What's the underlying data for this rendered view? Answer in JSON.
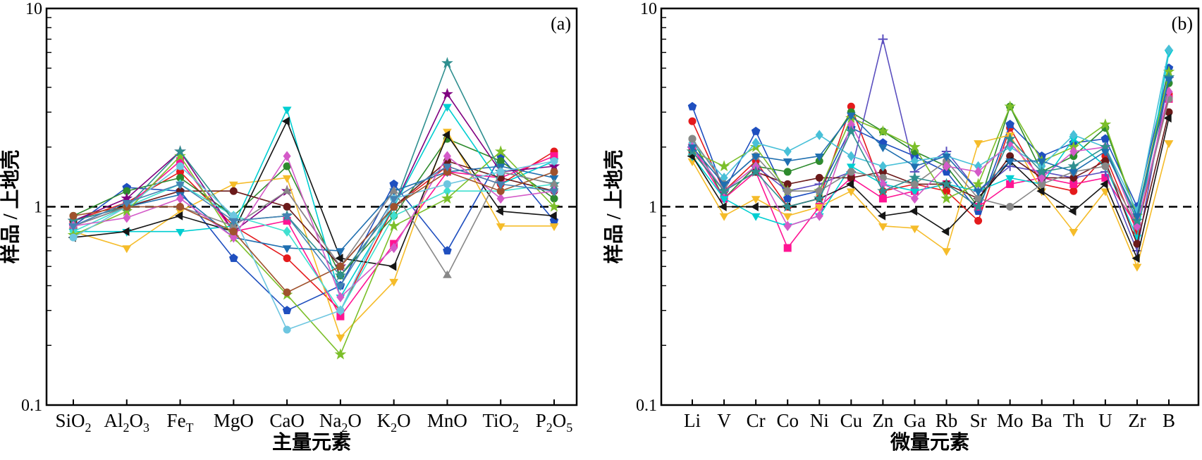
{
  "chart_data": [
    {
      "type": "line",
      "panel_label": "(a)",
      "xlabel": "主量元素",
      "ylabel": "样品 / 上地壳",
      "yscale": "log",
      "ylim": [
        0.1,
        10
      ],
      "y_ticks": [
        "0.1",
        "1",
        "10"
      ],
      "reference_line": 1,
      "grid": false,
      "categories": [
        {
          "base": "SiO",
          "sub": "2",
          "base2": "",
          "sub2": ""
        },
        {
          "base": "Al",
          "sub": "2",
          "base2": "O",
          "sub2": "3"
        },
        {
          "base": "Fe",
          "sub": "T",
          "base2": "",
          "sub2": ""
        },
        {
          "base": "MgO",
          "sub": "",
          "base2": "",
          "sub2": ""
        },
        {
          "base": "CaO",
          "sub": "",
          "base2": "",
          "sub2": ""
        },
        {
          "base": "Na",
          "sub": "2",
          "base2": "O",
          "sub2": ""
        },
        {
          "base": "K",
          "sub": "2",
          "base2": "O",
          "sub2": ""
        },
        {
          "base": "MnO",
          "sub": "",
          "base2": "",
          "sub2": ""
        },
        {
          "base": "TiO",
          "sub": "2",
          "base2": "",
          "sub2": ""
        },
        {
          "base": "P",
          "sub": "2",
          "base2": "O",
          "sub2": "5"
        }
      ],
      "series": [
        {
          "color": "#e41a1c",
          "marker": "circle",
          "values": [
            0.85,
            1.05,
            1.5,
            0.8,
            0.55,
            0.3,
            1.0,
            1.6,
            1.3,
            1.9
          ]
        },
        {
          "color": "#1f4fbf",
          "marker": "pentagon",
          "values": [
            0.8,
            1.25,
            1.2,
            0.55,
            0.3,
            0.4,
            1.3,
            0.6,
            1.8,
            0.85
          ]
        },
        {
          "color": "#2e8b2e",
          "marker": "circle",
          "values": [
            0.9,
            1.2,
            1.4,
            0.9,
            1.6,
            0.45,
            0.9,
            2.2,
            1.7,
            1.1
          ]
        },
        {
          "color": "#ff1493",
          "marker": "square",
          "values": [
            0.8,
            1.0,
            1.7,
            0.75,
            0.85,
            0.28,
            0.65,
            1.5,
            1.4,
            1.8
          ]
        },
        {
          "color": "#800080",
          "marker": "star",
          "values": [
            0.85,
            1.1,
            1.9,
            0.75,
            1.2,
            0.5,
            1.0,
            3.7,
            1.5,
            1.6
          ]
        },
        {
          "color": "#f5bc2a",
          "marker": "tri-down",
          "values": [
            0.75,
            0.62,
            0.95,
            1.3,
            1.4,
            0.22,
            0.42,
            2.4,
            0.8,
            0.8
          ]
        },
        {
          "color": "#00ced1",
          "marker": "tri-down",
          "values": [
            0.75,
            0.75,
            0.75,
            0.8,
            3.1,
            0.35,
            1.0,
            3.2,
            1.3,
            1.7
          ]
        },
        {
          "color": "#6b1a1a",
          "marker": "circle",
          "values": [
            0.85,
            1.0,
            1.2,
            1.2,
            1.0,
            0.5,
            1.0,
            1.7,
            1.4,
            1.2
          ]
        },
        {
          "color": "#151515",
          "marker": "tri-left",
          "values": [
            0.7,
            0.75,
            0.9,
            0.75,
            2.7,
            0.55,
            0.5,
            2.3,
            0.95,
            0.9
          ]
        },
        {
          "color": "#1f6fb0",
          "marker": "tri-down",
          "values": [
            0.8,
            1.0,
            1.15,
            0.7,
            0.62,
            0.6,
            1.2,
            1.5,
            1.6,
            1.4
          ]
        },
        {
          "color": "#40e0d0",
          "marker": "diamond",
          "values": [
            0.75,
            1.0,
            1.3,
            0.9,
            0.75,
            0.3,
            0.9,
            1.2,
            1.2,
            1.3
          ]
        },
        {
          "color": "#7cbf2a",
          "marker": "star",
          "values": [
            0.72,
            0.95,
            1.8,
            0.7,
            0.36,
            0.18,
            0.8,
            1.1,
            1.9,
            1.0
          ]
        },
        {
          "color": "#2f8f8f",
          "marker": "star",
          "values": [
            0.85,
            1.0,
            1.9,
            0.85,
            0.9,
            0.45,
            1.0,
            5.3,
            1.5,
            1.3
          ]
        },
        {
          "color": "#888888",
          "marker": "tri-up",
          "values": [
            0.8,
            1.0,
            1.0,
            0.8,
            1.2,
            0.5,
            1.2,
            0.45,
            1.5,
            1.3
          ]
        },
        {
          "color": "#d45ac8",
          "marker": "diamond",
          "values": [
            0.8,
            0.88,
            1.1,
            0.7,
            1.8,
            0.35,
            0.62,
            1.8,
            1.1,
            1.2
          ]
        },
        {
          "color": "#6ec6e0",
          "marker": "circle",
          "values": [
            0.7,
            1.0,
            1.6,
            0.9,
            0.24,
            0.3,
            1.1,
            1.3,
            1.5,
            1.7
          ]
        },
        {
          "color": "#a0522d",
          "marker": "circle",
          "values": [
            0.9,
            1.0,
            1.0,
            0.75,
            0.37,
            0.5,
            1.0,
            1.5,
            1.2,
            1.5
          ]
        },
        {
          "color": "#4682b4",
          "marker": "tri-down",
          "values": [
            0.8,
            1.05,
            1.3,
            0.85,
            0.9,
            0.4,
            1.1,
            1.6,
            1.3,
            1.2
          ]
        }
      ]
    },
    {
      "type": "line",
      "panel_label": "(b)",
      "xlabel": "微量元素",
      "ylabel": "样品 / 上地壳",
      "yscale": "log",
      "ylim": [
        0.1,
        10
      ],
      "y_ticks": [
        "0.1",
        "1",
        "10"
      ],
      "reference_line": 1,
      "grid": false,
      "categories": [
        {
          "base": "Li",
          "sub": "",
          "base2": "",
          "sub2": ""
        },
        {
          "base": "V",
          "sub": "",
          "base2": "",
          "sub2": ""
        },
        {
          "base": "Cr",
          "sub": "",
          "base2": "",
          "sub2": ""
        },
        {
          "base": "Co",
          "sub": "",
          "base2": "",
          "sub2": ""
        },
        {
          "base": "Ni",
          "sub": "",
          "base2": "",
          "sub2": ""
        },
        {
          "base": "Cu",
          "sub": "",
          "base2": "",
          "sub2": ""
        },
        {
          "base": "Zn",
          "sub": "",
          "base2": "",
          "sub2": ""
        },
        {
          "base": "Ga",
          "sub": "",
          "base2": "",
          "sub2": ""
        },
        {
          "base": "Rb",
          "sub": "",
          "base2": "",
          "sub2": ""
        },
        {
          "base": "Sr",
          "sub": "",
          "base2": "",
          "sub2": ""
        },
        {
          "base": "Mo",
          "sub": "",
          "base2": "",
          "sub2": ""
        },
        {
          "base": "Ba",
          "sub": "",
          "base2": "",
          "sub2": ""
        },
        {
          "base": "Th",
          "sub": "",
          "base2": "",
          "sub2": ""
        },
        {
          "base": "U",
          "sub": "",
          "base2": "",
          "sub2": ""
        },
        {
          "base": "Zr",
          "sub": "",
          "base2": "",
          "sub2": ""
        },
        {
          "base": "B",
          "sub": "",
          "base2": "",
          "sub2": ""
        }
      ],
      "series": [
        {
          "color": "#e41a1c",
          "marker": "circle",
          "values": [
            2.7,
            1.2,
            1.7,
            1.0,
            1.1,
            3.2,
            1.2,
            1.3,
            1.2,
            0.85,
            2.5,
            1.3,
            1.2,
            1.8,
            0.75,
            3.7
          ]
        },
        {
          "color": "#1f4fbf",
          "marker": "pentagon",
          "values": [
            3.2,
            1.2,
            2.4,
            1.1,
            1.2,
            2.5,
            2.1,
            1.8,
            1.5,
            0.95,
            2.6,
            1.8,
            2.1,
            2.2,
            1.0,
            5.0
          ]
        },
        {
          "color": "#2e8b2e",
          "marker": "circle",
          "values": [
            2.2,
            1.1,
            1.6,
            1.5,
            1.7,
            3.0,
            2.4,
            1.9,
            1.6,
            1.0,
            3.2,
            1.5,
            1.8,
            2.5,
            0.9,
            4.2
          ]
        },
        {
          "color": "#ff1493",
          "marker": "square",
          "values": [
            2.0,
            1.1,
            1.5,
            0.62,
            1.0,
            1.4,
            1.1,
            1.2,
            1.3,
            1.0,
            1.3,
            1.4,
            1.3,
            1.4,
            0.8,
            3.5
          ]
        },
        {
          "color": "#5b4fbf",
          "marker": "plus",
          "values": [
            2.0,
            1.2,
            1.6,
            1.2,
            1.3,
            1.5,
            7.0,
            1.5,
            1.9,
            1.2,
            1.6,
            1.5,
            1.4,
            1.5,
            0.6,
            4.5
          ]
        },
        {
          "color": "#f5bc2a",
          "marker": "tri-down",
          "values": [
            1.7,
            0.9,
            1.1,
            0.9,
            1.0,
            1.2,
            0.8,
            0.78,
            0.6,
            2.1,
            2.3,
            1.2,
            0.75,
            1.2,
            0.5,
            2.1
          ]
        },
        {
          "color": "#00ced1",
          "marker": "tri-down",
          "values": [
            1.8,
            1.1,
            0.9,
            0.8,
            0.9,
            1.6,
            1.3,
            1.2,
            1.3,
            1.2,
            1.4,
            1.3,
            2.2,
            1.6,
            0.7,
            6.0
          ]
        },
        {
          "color": "#6b1a1a",
          "marker": "circle",
          "values": [
            1.9,
            1.2,
            1.5,
            1.3,
            1.4,
            1.4,
            1.5,
            1.3,
            1.3,
            1.1,
            1.8,
            1.4,
            1.4,
            1.7,
            0.65,
            3.0
          ]
        },
        {
          "color": "#151515",
          "marker": "tri-left",
          "values": [
            1.8,
            1.0,
            1.0,
            1.0,
            1.1,
            1.3,
            0.9,
            0.95,
            0.75,
            1.1,
            1.7,
            1.2,
            0.95,
            1.3,
            0.55,
            2.8
          ]
        },
        {
          "color": "#7cbf2a",
          "marker": "star",
          "values": [
            1.9,
            1.6,
            2.0,
            1.2,
            1.2,
            2.8,
            2.4,
            2.0,
            1.1,
            1.3,
            3.2,
            1.7,
            2.0,
            2.6,
            0.9,
            4.8
          ]
        },
        {
          "color": "#48c0d8",
          "marker": "diamond",
          "values": [
            2.1,
            1.4,
            2.1,
            1.9,
            2.3,
            1.8,
            1.6,
            1.7,
            1.8,
            1.6,
            2.0,
            1.6,
            2.3,
            2.0,
            0.95,
            6.2
          ]
        },
        {
          "color": "#888888",
          "marker": "circle",
          "values": [
            2.2,
            1.3,
            1.8,
            1.2,
            1.2,
            1.5,
            1.4,
            1.3,
            1.7,
            1.1,
            1.0,
            1.3,
            1.5,
            1.6,
            0.8,
            3.5
          ]
        },
        {
          "color": "#d45ac8",
          "marker": "diamond",
          "values": [
            2.0,
            1.2,
            1.6,
            0.8,
            0.9,
            2.6,
            1.3,
            1.1,
            1.6,
            1.5,
            2.1,
            1.4,
            1.9,
            2.0,
            0.8,
            3.8
          ]
        },
        {
          "color": "#2f8f8f",
          "marker": "star",
          "values": [
            1.9,
            1.2,
            1.5,
            1.0,
            1.1,
            2.4,
            1.2,
            1.4,
            1.3,
            1.0,
            2.2,
            1.5,
            1.6,
            2.0,
            0.85,
            4.5
          ]
        },
        {
          "color": "#1f6fb0",
          "marker": "tri-down",
          "values": [
            2.0,
            1.3,
            1.8,
            1.7,
            1.8,
            2.9,
            2.0,
            1.6,
            1.8,
            1.2,
            1.7,
            1.7,
            1.5,
            1.9,
            0.9,
            4.4
          ]
        }
      ]
    }
  ]
}
